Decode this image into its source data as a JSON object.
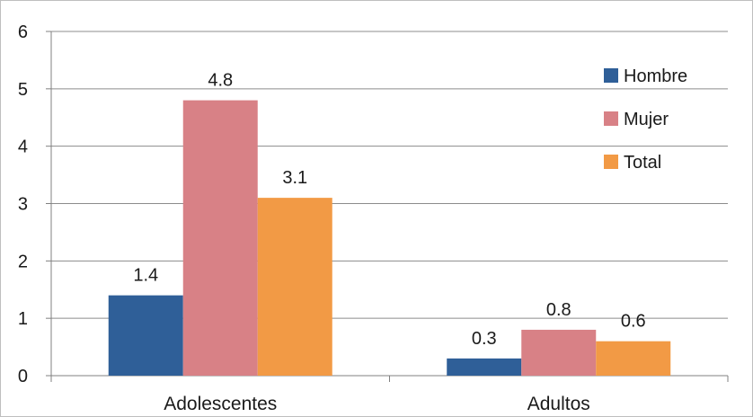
{
  "chart_data": {
    "type": "bar",
    "categories": [
      "Adolescentes",
      "Adultos"
    ],
    "series": [
      {
        "name": "Hombre",
        "values": [
          1.4,
          0.3
        ],
        "color": "#2f5f98"
      },
      {
        "name": "Mujer",
        "values": [
          4.8,
          0.8
        ],
        "color": "#d88186"
      },
      {
        "name": "Total",
        "values": [
          3.1,
          0.6
        ],
        "color": "#f29a45"
      }
    ],
    "ylim": [
      0,
      6
    ],
    "yticks": [
      "0",
      "1",
      "2",
      "3",
      "4",
      "5",
      "6"
    ],
    "grid": true,
    "legend_position": "right",
    "title": "",
    "xlabel": "",
    "ylabel": ""
  }
}
